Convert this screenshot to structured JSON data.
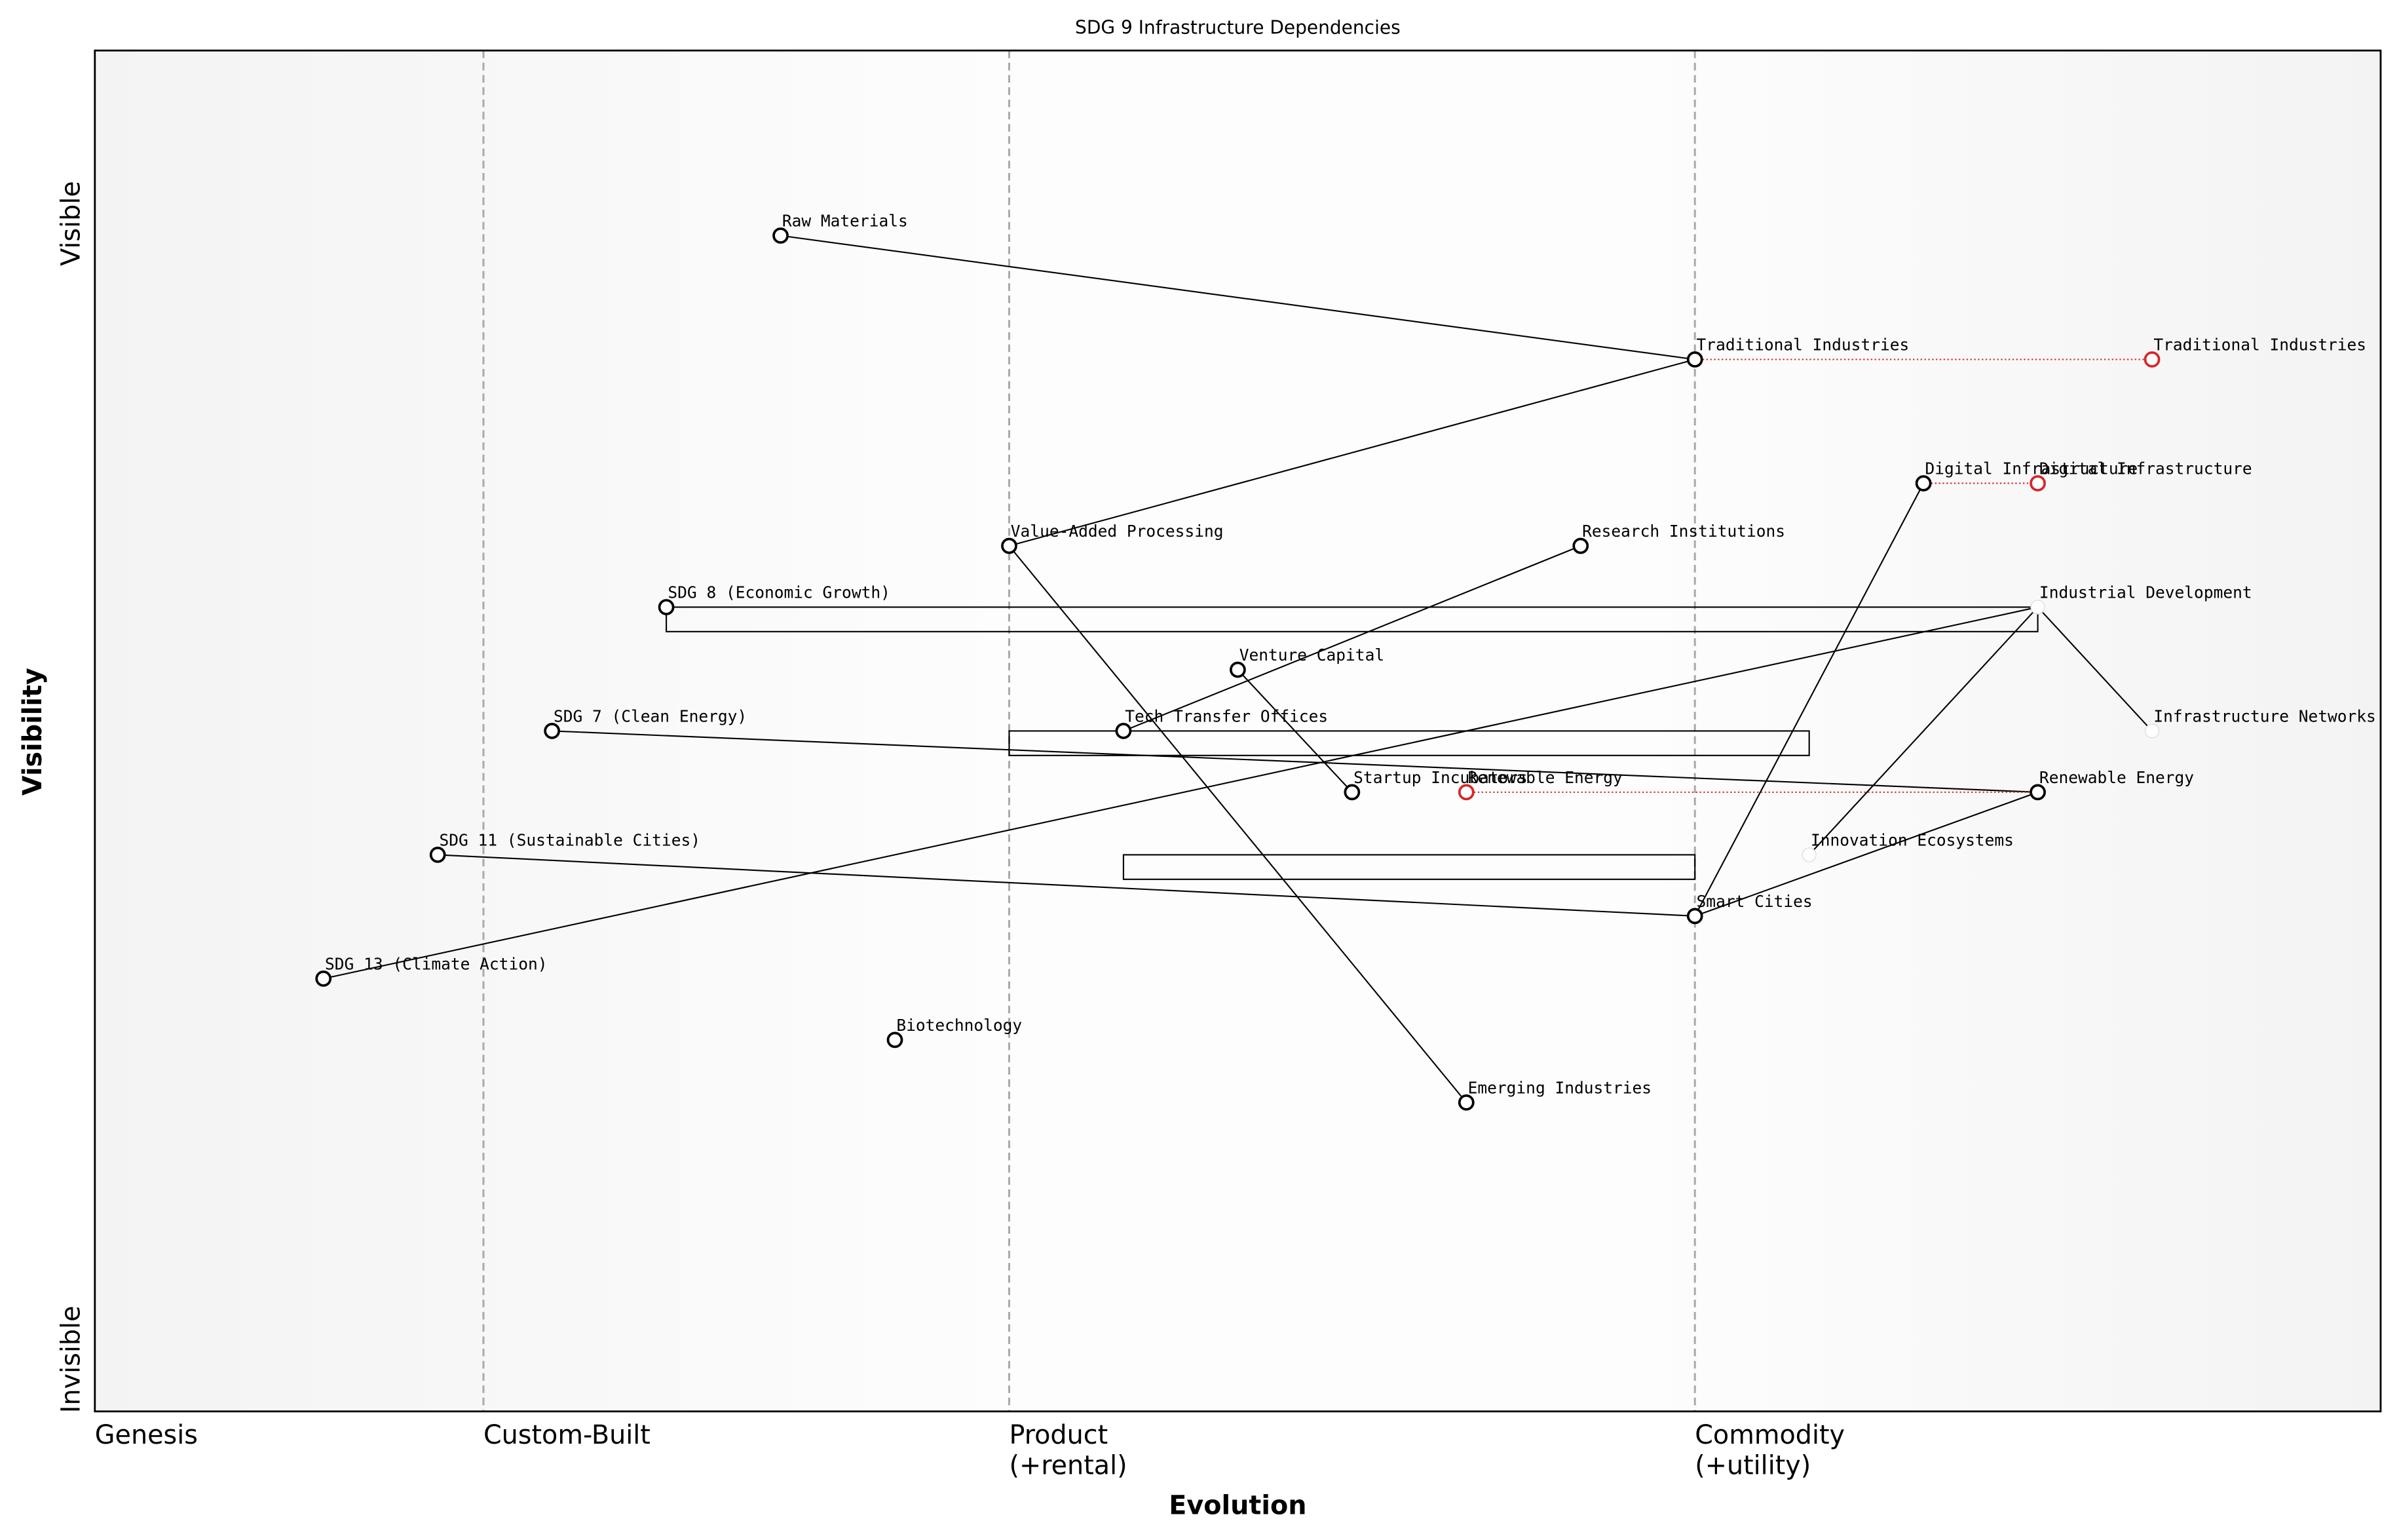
{
  "chart_data": {
    "type": "wardley",
    "title": "SDG 9 Infrastructure Dependencies",
    "xlabel": "Evolution",
    "ylabel": "Visibility",
    "xlim": [
      0,
      1
    ],
    "ylim": [
      0,
      1
    ],
    "xticks": [
      {
        "value": 0,
        "label": "Genesis"
      },
      {
        "value": 0.17,
        "label": "Custom-Built"
      },
      {
        "value": 0.4,
        "label": "Product\n(+rental)"
      },
      {
        "value": 0.7,
        "label": "Commodity\n(+utility)"
      }
    ],
    "visibility_labels": [
      "Visible",
      "Invisible"
    ],
    "components": [
      {
        "name": "Raw Materials",
        "evolution": 0.3,
        "visibility": 0.864
      },
      {
        "name": "Traditional Industries",
        "evolution": 0.7,
        "visibility": 0.773
      },
      {
        "name": "Digital Infrastructure",
        "evolution": 0.8,
        "visibility": 0.682
      },
      {
        "name": "Value-Added Processing",
        "evolution": 0.4,
        "visibility": 0.636
      },
      {
        "name": "Research Institutions",
        "evolution": 0.65,
        "visibility": 0.636
      },
      {
        "name": "SDG 8 (Economic Growth)",
        "evolution": 0.25,
        "visibility": 0.591
      },
      {
        "name": "Industrial Development",
        "evolution": 0.85,
        "visibility": 0.591,
        "marker": false
      },
      {
        "name": "Venture Capital",
        "evolution": 0.5,
        "visibility": 0.545
      },
      {
        "name": "SDG 7 (Clean Energy)",
        "evolution": 0.2,
        "visibility": 0.5
      },
      {
        "name": "Tech Transfer Offices",
        "evolution": 0.45,
        "visibility": 0.5
      },
      {
        "name": "Infrastructure Networks",
        "evolution": 0.9,
        "visibility": 0.5,
        "marker": false
      },
      {
        "name": "Startup Incubators",
        "evolution": 0.55,
        "visibility": 0.455
      },
      {
        "name": "Renewable Energy",
        "evolution": 0.85,
        "visibility": 0.455
      },
      {
        "name": "SDG 11 (Sustainable Cities)",
        "evolution": 0.15,
        "visibility": 0.409
      },
      {
        "name": "Innovation Ecosystems",
        "evolution": 0.75,
        "visibility": 0.409,
        "marker": false
      },
      {
        "name": "Smart Cities",
        "evolution": 0.7,
        "visibility": 0.364
      },
      {
        "name": "SDG 13 (Climate Action)",
        "evolution": 0.1,
        "visibility": 0.318
      },
      {
        "name": "Biotechnology",
        "evolution": 0.35,
        "visibility": 0.273
      },
      {
        "name": "Emerging Industries",
        "evolution": 0.6,
        "visibility": 0.227
      }
    ],
    "evolved": [
      {
        "name": "Traditional Industries",
        "evolution": 0.9
      },
      {
        "name": "Digital Infrastructure",
        "evolution": 0.85
      },
      {
        "name": "Renewable Energy",
        "evolution": 0.6
      }
    ],
    "links": [
      {
        "from": "Raw Materials",
        "to": "Traditional Industries"
      },
      {
        "from": "Traditional Industries",
        "to": "Value-Added Processing"
      },
      {
        "from": "Value-Added Processing",
        "to": "Emerging Industries"
      },
      {
        "from": "Research Institutions",
        "to": "Tech Transfer Offices"
      },
      {
        "from": "Venture Capital",
        "to": "Startup Incubators"
      },
      {
        "from": "Industrial Development",
        "to": "Infrastructure Networks"
      },
      {
        "from": "Industrial Development",
        "to": "SDG 13 (Climate Action)"
      },
      {
        "from": "Industrial Development",
        "to": "Innovation Ecosystems"
      },
      {
        "from": "SDG 7 (Clean Energy)",
        "to": "Renewable Energy"
      },
      {
        "from": "SDG 11 (Sustainable Cities)",
        "to": "Smart Cities"
      },
      {
        "from": "Smart Cities",
        "to": "Digital Infrastructure"
      },
      {
        "from": "Smart Cities",
        "to": "Renewable Energy"
      }
    ],
    "pipelines": [
      {
        "visibility": 0.591,
        "start": 0.25,
        "end": 0.85
      },
      {
        "visibility": 0.5,
        "start": 0.4,
        "end": 0.75
      },
      {
        "visibility": 0.409,
        "start": 0.45,
        "end": 0.7
      }
    ]
  }
}
